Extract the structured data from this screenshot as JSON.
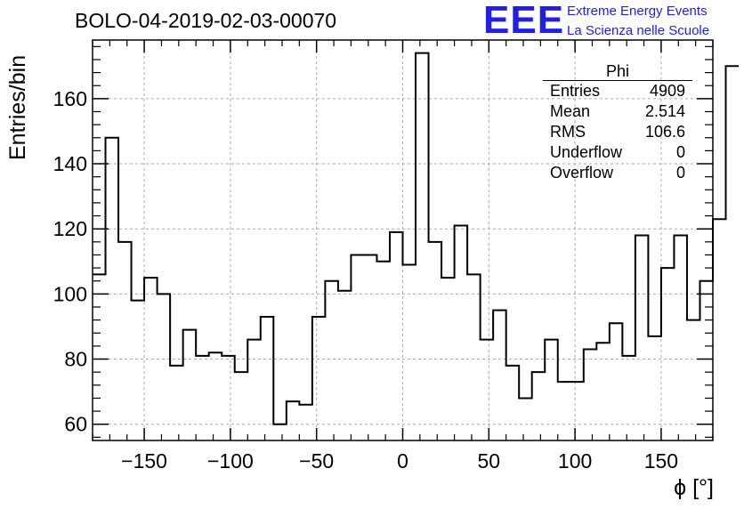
{
  "title": "BOLO-04-2019-02-03-00070",
  "logo": {
    "text": "EEE",
    "line1": "Extreme Energy Events",
    "line2": "La Scienza nelle Scuole",
    "color": "#1f1fe6"
  },
  "stats": {
    "name": "Phi",
    "rows": [
      {
        "label": "Entries",
        "value": "4909"
      },
      {
        "label": "Mean",
        "value": "2.514"
      },
      {
        "label": "RMS",
        "value": "106.6"
      },
      {
        "label": "Underflow",
        "value": "0"
      },
      {
        "label": "Overflow",
        "value": "0"
      }
    ]
  },
  "chart_data": {
    "type": "bar",
    "style": "step-histogram",
    "title": "BOLO-04-2019-02-03-00070",
    "xlabel": "ϕ [°]",
    "ylabel": "Entries/bin",
    "xlim": [
      -180,
      180
    ],
    "ylim": [
      55,
      178
    ],
    "bin_width": 7.5,
    "x_ticks": [
      -150,
      -100,
      -50,
      0,
      50,
      100,
      150
    ],
    "x_tick_labels": [
      "−150",
      "−100",
      "−50",
      "0",
      "50",
      "100",
      "150"
    ],
    "y_ticks": [
      60,
      80,
      100,
      120,
      140,
      160
    ],
    "y_tick_labels": [
      "60",
      "80",
      "100",
      "120",
      "140",
      "160"
    ],
    "grid": true,
    "values": [
      106,
      148,
      116,
      98,
      105,
      100,
      78,
      89,
      81,
      82,
      81,
      76,
      86,
      93,
      60,
      67,
      66,
      93,
      104,
      101,
      112,
      112,
      110,
      119,
      109,
      174,
      116,
      105,
      121,
      106,
      86,
      95,
      78,
      68,
      76,
      86,
      73,
      73,
      83,
      85,
      91,
      81,
      118,
      87,
      108,
      118,
      92,
      104,
      123,
      170
    ]
  }
}
